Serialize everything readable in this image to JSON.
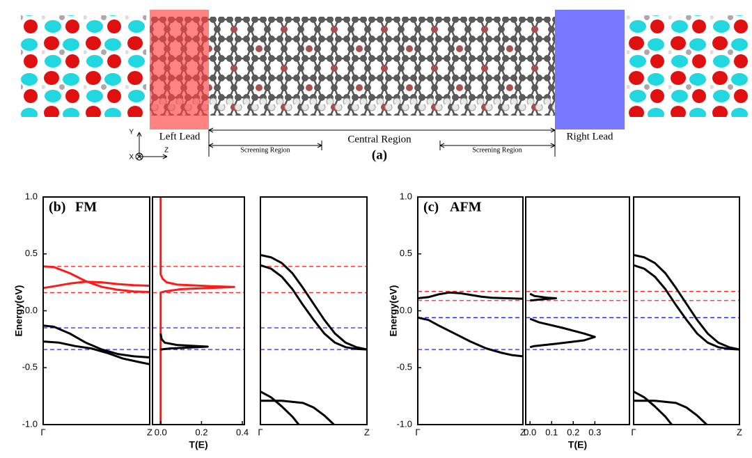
{
  "diagram": {
    "left_lead": "Left Lead",
    "central_region": "Central Region",
    "right_lead": "Right Lead",
    "screening_left": "Screening Region",
    "screening_right": "Screening Region",
    "panel_label": "(a)",
    "axis_y": "Y",
    "axis_z": "Z",
    "axis_x": "X"
  },
  "chart_data": [
    {
      "type": "line",
      "panel_label": "(b)",
      "title": "FM",
      "ylabel": "Energy(eV)",
      "ylim": [
        -1,
        1
      ],
      "yticks": [
        {
          "value": 1,
          "label": "1.0"
        },
        {
          "value": 0.5,
          "label": "0.5"
        },
        {
          "value": 0,
          "label": "0.0"
        },
        {
          "value": -0.5,
          "label": "-0.5"
        },
        {
          "value": -1,
          "label": "-1.0"
        }
      ],
      "xlim": [
        0,
        1
      ],
      "xticks": [
        {
          "value": 0,
          "label": "Γ"
        },
        {
          "value": 1,
          "label": "Z"
        }
      ],
      "hlines": [
        {
          "value": 0.39,
          "color": "#ff2020"
        },
        {
          "value": 0.16,
          "color": "#ff2020"
        },
        {
          "value": -0.15,
          "color": "#2020ff"
        },
        {
          "value": -0.34,
          "color": "#2020ff"
        }
      ],
      "series": [
        {
          "color": "#ff1a1a",
          "x": [
            0,
            0.1,
            0.25,
            0.4,
            0.55,
            0.7,
            0.85,
            1
          ],
          "values": [
            0.39,
            0.385,
            0.33,
            0.26,
            0.21,
            0.185,
            0.17,
            0.165
          ]
        },
        {
          "color": "#ff1a1a",
          "x": [
            0,
            0.1,
            0.25,
            0.4,
            0.55,
            0.7,
            0.85,
            1
          ],
          "values": [
            0.2,
            0.215,
            0.24,
            0.255,
            0.25,
            0.235,
            0.225,
            0.22
          ]
        },
        {
          "color": "#000000",
          "x": [
            0,
            0.1,
            0.25,
            0.4,
            0.55,
            0.7,
            0.85,
            1
          ],
          "values": [
            -0.13,
            -0.14,
            -0.2,
            -0.28,
            -0.34,
            -0.38,
            -0.4,
            -0.41
          ]
        },
        {
          "color": "#000000",
          "x": [
            0,
            0.15,
            0.3,
            0.45,
            0.6,
            0.75,
            0.9,
            1
          ],
          "values": [
            -0.27,
            -0.28,
            -0.31,
            -0.33,
            -0.37,
            -0.42,
            -0.45,
            -0.47
          ]
        }
      ]
    },
    {
      "type": "line",
      "xlabel": "T(E)",
      "ylim": [
        -1,
        1
      ],
      "xlim": [
        -0.04,
        0.41
      ],
      "xticks": [
        {
          "value": 0,
          "label": "0.0"
        },
        0.2,
        0.4
      ],
      "hlines": [
        {
          "value": 0.39,
          "color": "#ff2020"
        },
        {
          "value": 0.16,
          "color": "#ff2020"
        },
        {
          "value": -0.15,
          "color": "#2020ff"
        },
        {
          "value": -0.34,
          "color": "#2020ff"
        }
      ],
      "series": [
        {
          "color": "#ff1a1a",
          "x": [
            0,
            0,
            0.01,
            0.03,
            0.08,
            0.25,
            0.36,
            0.3,
            0.1,
            0.02,
            0,
            0
          ],
          "values": [
            1,
            0.32,
            0.28,
            0.25,
            0.23,
            0.215,
            0.21,
            0.205,
            0.19,
            0.17,
            0.16,
            -1
          ]
        },
        {
          "color": "#000000",
          "x": [
            0,
            0.005,
            0.02,
            0.08,
            0.18,
            0.23,
            0.18,
            0.05,
            0
          ],
          "values": [
            -0.2,
            -0.25,
            -0.28,
            -0.3,
            -0.31,
            -0.315,
            -0.32,
            -0.33,
            -0.34
          ]
        }
      ]
    },
    {
      "type": "line",
      "ylim": [
        -1,
        1
      ],
      "xlim": [
        0,
        1
      ],
      "xticks": [
        {
          "value": 0,
          "label": "Γ"
        },
        {
          "value": 1,
          "label": "Z"
        }
      ],
      "hlines": [
        {
          "value": 0.39,
          "color": "#ff2020"
        },
        {
          "value": 0.16,
          "color": "#ff2020"
        },
        {
          "value": -0.15,
          "color": "#2020ff"
        },
        {
          "value": -0.34,
          "color": "#2020ff"
        }
      ],
      "series": [
        {
          "color": "#000000",
          "x": [
            0,
            0.1,
            0.2,
            0.3,
            0.4,
            0.5,
            0.6,
            0.7,
            0.8,
            0.9,
            1
          ],
          "values": [
            0.49,
            0.47,
            0.42,
            0.33,
            0.2,
            0.06,
            -0.08,
            -0.2,
            -0.28,
            -0.32,
            -0.34
          ]
        },
        {
          "color": "#000000",
          "x": [
            0,
            0.1,
            0.2,
            0.3,
            0.4,
            0.5,
            0.6,
            0.7,
            0.8,
            0.9,
            1
          ],
          "values": [
            0.4,
            0.37,
            0.3,
            0.19,
            0.05,
            -0.08,
            -0.2,
            -0.28,
            -0.32,
            -0.335,
            -0.34
          ]
        },
        {
          "color": "#000000",
          "x": [
            0,
            0.1,
            0.2,
            0.3,
            0.36
          ],
          "values": [
            -0.71,
            -0.76,
            -0.84,
            -0.93,
            -1
          ]
        },
        {
          "color": "#000000",
          "x": [
            0,
            0.2,
            0.4,
            0.5,
            0.6,
            0.69
          ],
          "values": [
            -0.79,
            -0.79,
            -0.81,
            -0.85,
            -0.92,
            -1
          ]
        }
      ]
    },
    {
      "type": "line",
      "panel_label": "(c)",
      "title": "AFM",
      "ylabel": "Energy(eV)",
      "ylim": [
        -1,
        1
      ],
      "yticks": [
        {
          "value": 1,
          "label": "1.0"
        },
        {
          "value": 0.5,
          "label": "0.5"
        },
        {
          "value": 0,
          "label": "0.0"
        },
        {
          "value": -0.5,
          "label": "-0.5"
        },
        {
          "value": -1,
          "label": "-1.0"
        }
      ],
      "xlim": [
        0,
        1
      ],
      "xticks": [
        {
          "value": 0,
          "label": "Γ"
        },
        {
          "value": 1,
          "label": "Z"
        }
      ],
      "hlines": [
        {
          "value": 0.17,
          "color": "#ff2020"
        },
        {
          "value": 0.09,
          "color": "#ff2020"
        },
        {
          "value": -0.06,
          "color": "#2020ff"
        },
        {
          "value": -0.34,
          "color": "#2020ff"
        }
      ],
      "series": [
        {
          "color": "#000000",
          "x": [
            0,
            0.1,
            0.2,
            0.3,
            0.4,
            0.5,
            0.6,
            0.7,
            0.85,
            1
          ],
          "values": [
            0.11,
            0.12,
            0.145,
            0.16,
            0.155,
            0.14,
            0.125,
            0.115,
            0.11,
            0.105
          ]
        },
        {
          "color": "#000000",
          "x": [
            0,
            0.1,
            0.2,
            0.35,
            0.5,
            0.65,
            0.8,
            0.9,
            1
          ],
          "values": [
            -0.06,
            -0.08,
            -0.13,
            -0.2,
            -0.27,
            -0.33,
            -0.37,
            -0.39,
            -0.4
          ]
        }
      ]
    },
    {
      "type": "line",
      "xlabel": "T(E)",
      "ylim": [
        -1,
        1
      ],
      "xlim": [
        -0.02,
        0.46
      ],
      "xticks": [
        {
          "value": 0,
          "label": "0.0"
        },
        0.1,
        0.2,
        0.3
      ],
      "hlines": [
        {
          "value": 0.17,
          "color": "#ff2020"
        },
        {
          "value": 0.09,
          "color": "#ff2020"
        },
        {
          "value": -0.06,
          "color": "#2020ff"
        },
        {
          "value": -0.34,
          "color": "#2020ff"
        }
      ],
      "series": [
        {
          "color": "#000000",
          "x": [
            0,
            0.02,
            0.08,
            0.12,
            0.05,
            0
          ],
          "values": [
            0.15,
            0.13,
            0.115,
            0.11,
            0.1,
            0.09
          ]
        },
        {
          "color": "#000000",
          "x": [
            0,
            0.04,
            0.15,
            0.25,
            0.3,
            0.25,
            0.12,
            0.02,
            0
          ],
          "values": [
            -0.07,
            -0.1,
            -0.15,
            -0.2,
            -0.23,
            -0.26,
            -0.29,
            -0.31,
            -0.32
          ]
        }
      ]
    },
    {
      "type": "line",
      "ylim": [
        -1,
        1
      ],
      "xlim": [
        0,
        1
      ],
      "xticks": [
        {
          "value": 0,
          "label": "Γ"
        },
        {
          "value": 1,
          "label": "Z"
        }
      ],
      "hlines": [
        {
          "value": 0.17,
          "color": "#ff2020"
        },
        {
          "value": 0.09,
          "color": "#ff2020"
        },
        {
          "value": -0.06,
          "color": "#2020ff"
        },
        {
          "value": -0.34,
          "color": "#2020ff"
        }
      ],
      "series": [
        {
          "color": "#000000",
          "x": [
            0,
            0.1,
            0.2,
            0.3,
            0.4,
            0.5,
            0.6,
            0.7,
            0.8,
            0.9,
            1
          ],
          "values": [
            0.49,
            0.47,
            0.42,
            0.33,
            0.2,
            0.06,
            -0.08,
            -0.2,
            -0.28,
            -0.32,
            -0.34
          ]
        },
        {
          "color": "#000000",
          "x": [
            0,
            0.1,
            0.2,
            0.3,
            0.4,
            0.5,
            0.6,
            0.7,
            0.8,
            0.9,
            1
          ],
          "values": [
            0.4,
            0.37,
            0.3,
            0.19,
            0.05,
            -0.08,
            -0.2,
            -0.28,
            -0.32,
            -0.335,
            -0.34
          ]
        },
        {
          "color": "#000000",
          "x": [
            0,
            0.1,
            0.2,
            0.3,
            0.36
          ],
          "values": [
            -0.71,
            -0.76,
            -0.84,
            -0.93,
            -1
          ]
        },
        {
          "color": "#000000",
          "x": [
            0,
            0.2,
            0.4,
            0.5,
            0.6,
            0.69
          ],
          "values": [
            -0.79,
            -0.79,
            -0.81,
            -0.85,
            -0.92,
            -1
          ]
        }
      ]
    }
  ]
}
